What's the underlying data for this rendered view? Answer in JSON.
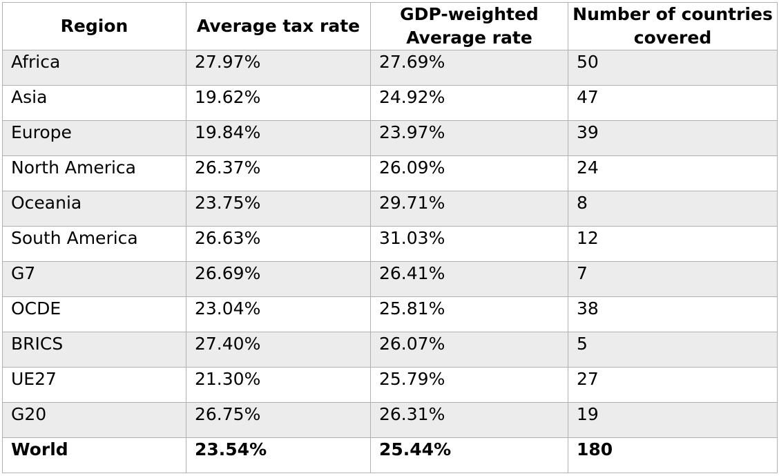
{
  "table": {
    "headers": [
      "Region",
      "Average tax rate",
      "GDP-weighted Average rate",
      "Number of countries covered"
    ],
    "rows": [
      [
        "Africa",
        "27.97%",
        "27.69%",
        "50"
      ],
      [
        "Asia",
        "19.62%",
        "24.92%",
        "47"
      ],
      [
        "Europe",
        "19.84%",
        "23.97%",
        "39"
      ],
      [
        "North America",
        "26.37%",
        "26.09%",
        "24"
      ],
      [
        "Oceania",
        "23.75%",
        "29.71%",
        "8"
      ],
      [
        "South America",
        "26.63%",
        "31.03%",
        "12"
      ],
      [
        "G7",
        "26.69%",
        "26.41%",
        "7"
      ],
      [
        "OCDE",
        "23.04%",
        "25.81%",
        "38"
      ],
      [
        "BRICS",
        "27.40%",
        "26.07%",
        "5"
      ],
      [
        "UE27",
        "21.30%",
        "25.79%",
        "27"
      ],
      [
        "G20",
        "26.75%",
        "26.31%",
        "19"
      ]
    ],
    "total": [
      "World",
      "23.54%",
      "25.44%",
      "180"
    ]
  }
}
